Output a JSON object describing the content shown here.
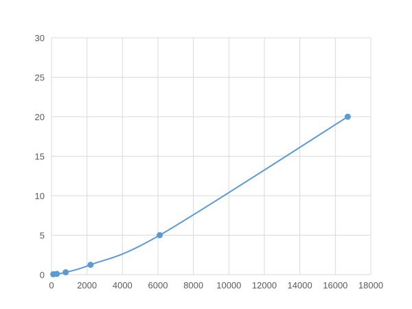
{
  "chart_data": {
    "type": "scatter",
    "title": "",
    "xlabel": "",
    "ylabel": "",
    "xlim": [
      0,
      18000
    ],
    "ylim": [
      0,
      30
    ],
    "xticks": [
      0,
      2000,
      4000,
      6000,
      8000,
      10000,
      12000,
      14000,
      16000,
      18000
    ],
    "yticks": [
      0,
      5,
      10,
      15,
      20,
      25,
      30
    ],
    "grid": true,
    "color": "#5b9bd5",
    "smooth_line": true,
    "series": [
      {
        "x": [
          100,
          300,
          800,
          2200,
          6100,
          16700
        ],
        "y": [
          0.05,
          0.1,
          0.3,
          1.25,
          5,
          20
        ]
      }
    ]
  }
}
